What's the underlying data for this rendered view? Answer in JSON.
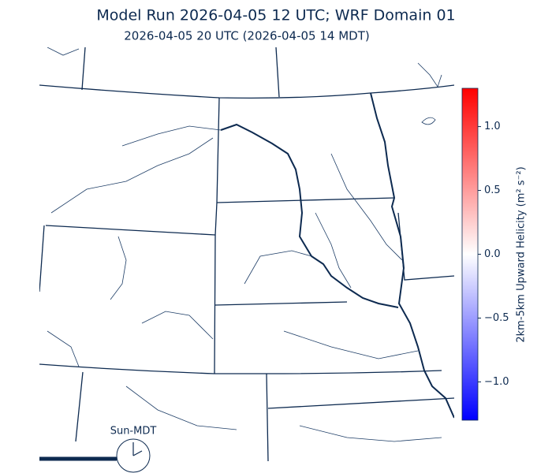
{
  "header": {
    "title": "Model Run 2026-04-05 12 UTC; WRF Domain 01",
    "subtitle": "2026-04-05 20 UTC  (2026-04-05 14 MDT)"
  },
  "colorbar": {
    "label": "2km-5km Upward Helicity (m² s⁻²)",
    "lim": [
      -1.3,
      1.3
    ],
    "colors": [
      "#0000ff",
      "#ffffff",
      "#ff0000"
    ],
    "ticks": [
      {
        "value": -1.0,
        "label": "−1.0"
      },
      {
        "value": -0.5,
        "label": "−0.5"
      },
      {
        "value": 0.0,
        "label": "0.0"
      },
      {
        "value": 0.5,
        "label": "0.5"
      },
      {
        "value": 1.0,
        "label": "1.0"
      }
    ]
  },
  "clock": {
    "label": "Sun-MDT"
  }
}
